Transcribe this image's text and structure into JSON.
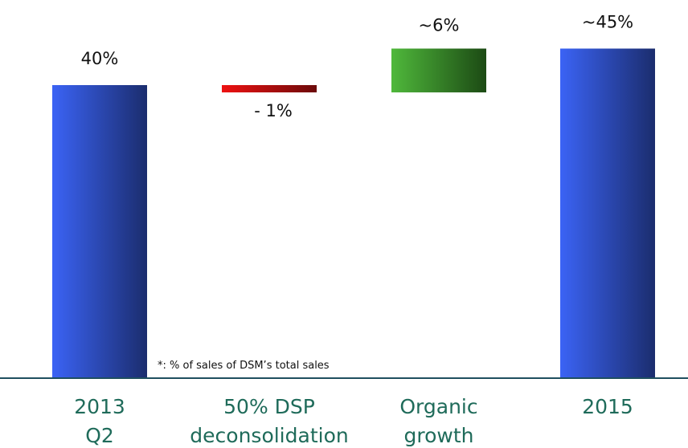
{
  "chart_data": {
    "type": "bar",
    "subtype": "waterfall",
    "categories": [
      [
        "2013",
        "Q2"
      ],
      [
        "50% DSP",
        "deconsolidation"
      ],
      [
        "Organic",
        "growth"
      ],
      [
        "2015"
      ]
    ],
    "steps": [
      {
        "kind": "total",
        "value": 40,
        "label": "40%"
      },
      {
        "kind": "delta",
        "value": -1,
        "label": "- 1%"
      },
      {
        "kind": "delta",
        "value": 6,
        "label": "~6%"
      },
      {
        "kind": "total",
        "value": 45,
        "label": "~45%"
      }
    ],
    "ylim": [
      0,
      50
    ],
    "grid": false,
    "legend": "none",
    "colors": {
      "total_light": "#3b63f5",
      "total_dark": "#1b2d6e",
      "decrease_light": "#ee1111",
      "decrease_dark": "#6b0a0a",
      "increase_light": "#4fb83b",
      "increase_dark": "#1c4a14",
      "decrease_label": "#ee1111",
      "category_text": "#1f6b5a",
      "axis": "#1f4f5f"
    }
  },
  "footnote": "*: % of sales of DSM’s total sales"
}
